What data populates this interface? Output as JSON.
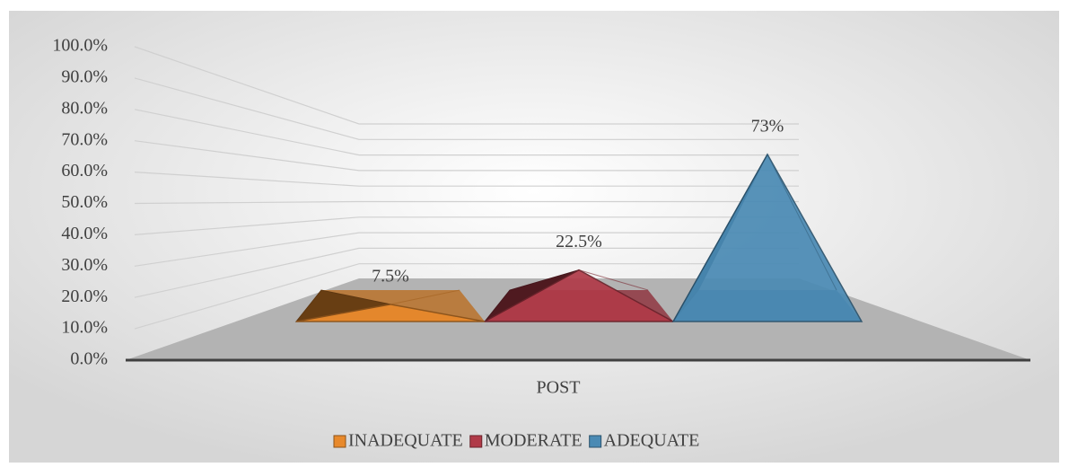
{
  "chart_data": {
    "type": "pyramid3d",
    "categories": [
      "POST"
    ],
    "series": [
      {
        "name": "INADEQUATE",
        "color": "#e8892b",
        "values": [
          7.5
        ],
        "value_labels": [
          "7.5%"
        ]
      },
      {
        "name": "MODERATE",
        "color": "#b03a48",
        "values": [
          22.5
        ],
        "value_labels": [
          "22.5%"
        ]
      },
      {
        "name": "ADEQUATE",
        "color": "#4a8ab4",
        "values": [
          73
        ],
        "value_labels": [
          "73%"
        ]
      }
    ],
    "ylim": [
      0,
      100
    ],
    "yticks": [
      {
        "value": 0,
        "label": "0.0%"
      },
      {
        "value": 10,
        "label": "10.0%"
      },
      {
        "value": 20,
        "label": "20.0%"
      },
      {
        "value": 30,
        "label": "30.0%"
      },
      {
        "value": 40,
        "label": "40.0%"
      },
      {
        "value": 50,
        "label": "50.0%"
      },
      {
        "value": 60,
        "label": "60.0%"
      },
      {
        "value": 70,
        "label": "70.0%"
      },
      {
        "value": 80,
        "label": "80.0%"
      },
      {
        "value": 90,
        "label": "90.0%"
      },
      {
        "value": 100,
        "label": "100.0%"
      }
    ],
    "grid": true,
    "legend": "bottom"
  }
}
